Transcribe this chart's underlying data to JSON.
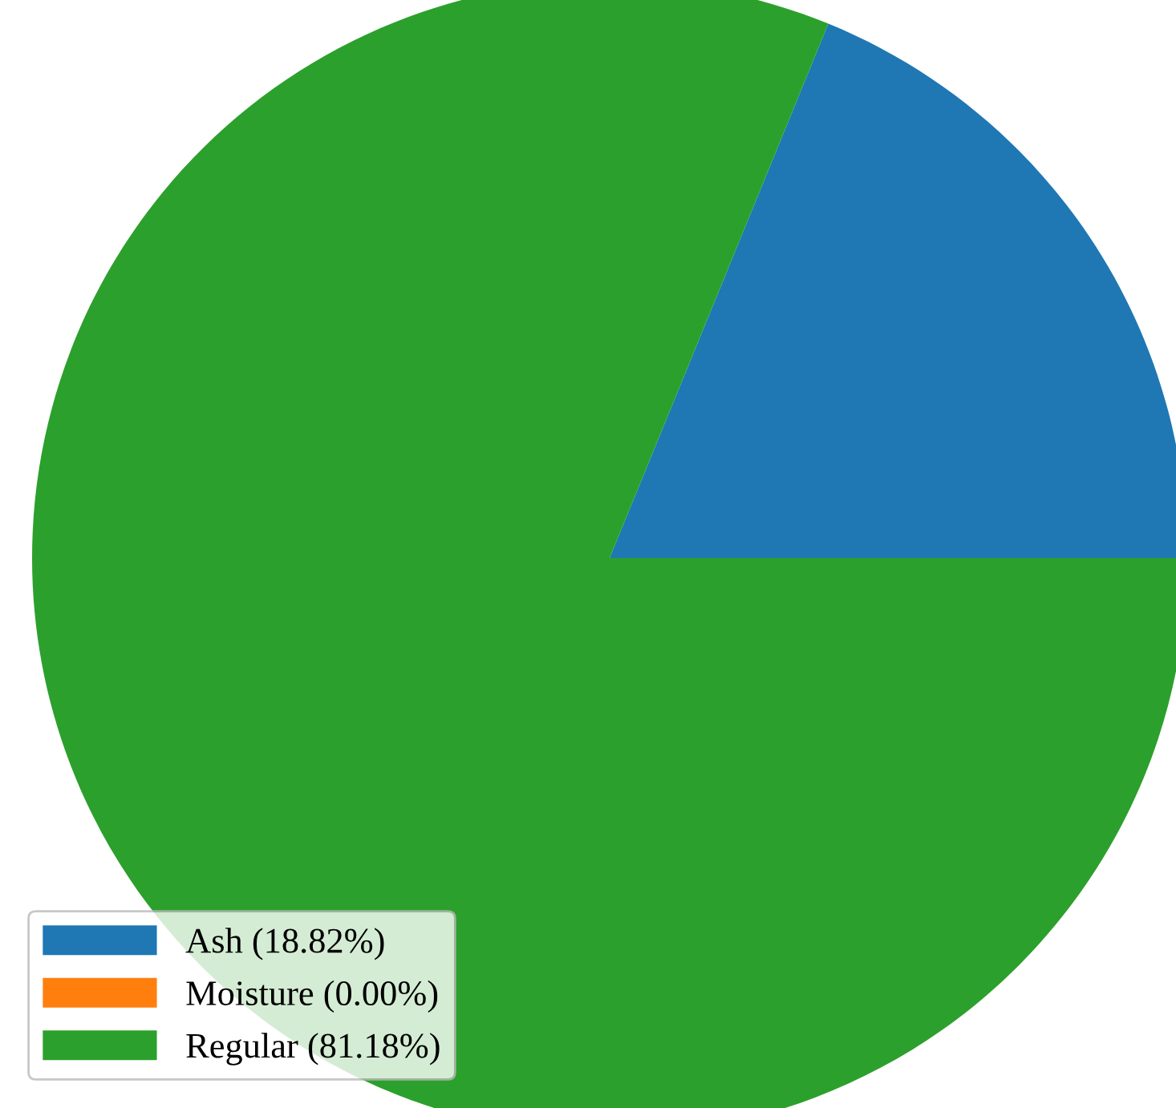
{
  "chart_data": {
    "type": "pie",
    "categories": [
      "Ash (18.82%)",
      "Moisture (0.00%)",
      "Regular (81.18%)"
    ],
    "values": [
      18.82,
      0.0,
      81.18
    ],
    "colors": [
      "#1f77b4",
      "#ff7f0e",
      "#2ca02c"
    ],
    "legend": "bottom left"
  }
}
